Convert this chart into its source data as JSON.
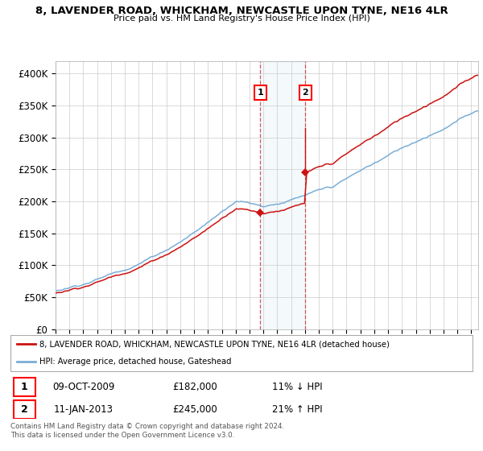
{
  "title": "8, LAVENDER ROAD, WHICKHAM, NEWCASTLE UPON TYNE, NE16 4LR",
  "subtitle": "Price paid vs. HM Land Registry's House Price Index (HPI)",
  "ylabel_ticks": [
    "£0",
    "£50K",
    "£100K",
    "£150K",
    "£200K",
    "£250K",
    "£300K",
    "£350K",
    "£400K"
  ],
  "ytick_values": [
    0,
    50000,
    100000,
    150000,
    200000,
    250000,
    300000,
    350000,
    400000
  ],
  "ylim": [
    0,
    420000
  ],
  "xlim_start": 1995.0,
  "xlim_end": 2025.5,
  "hpi_color": "#7aaed6",
  "price_color": "#cc1111",
  "sale1_year": 2009.78,
  "sale1_price": 182000,
  "sale2_year": 2013.03,
  "sale2_price": 245000,
  "legend_line1": "8, LAVENDER ROAD, WHICKHAM, NEWCASTLE UPON TYNE, NE16 4LR (detached house)",
  "legend_line2": "HPI: Average price, detached house, Gateshead",
  "table_row1": [
    "1",
    "09-OCT-2009",
    "£182,000",
    "11% ↓ HPI"
  ],
  "table_row2": [
    "2",
    "11-JAN-2013",
    "£245,000",
    "21% ↑ HPI"
  ],
  "footer": "Contains HM Land Registry data © Crown copyright and database right 2024.\nThis data is licensed under the Open Government Licence v3.0.",
  "background_color": "#ffffff",
  "grid_color": "#cccccc"
}
